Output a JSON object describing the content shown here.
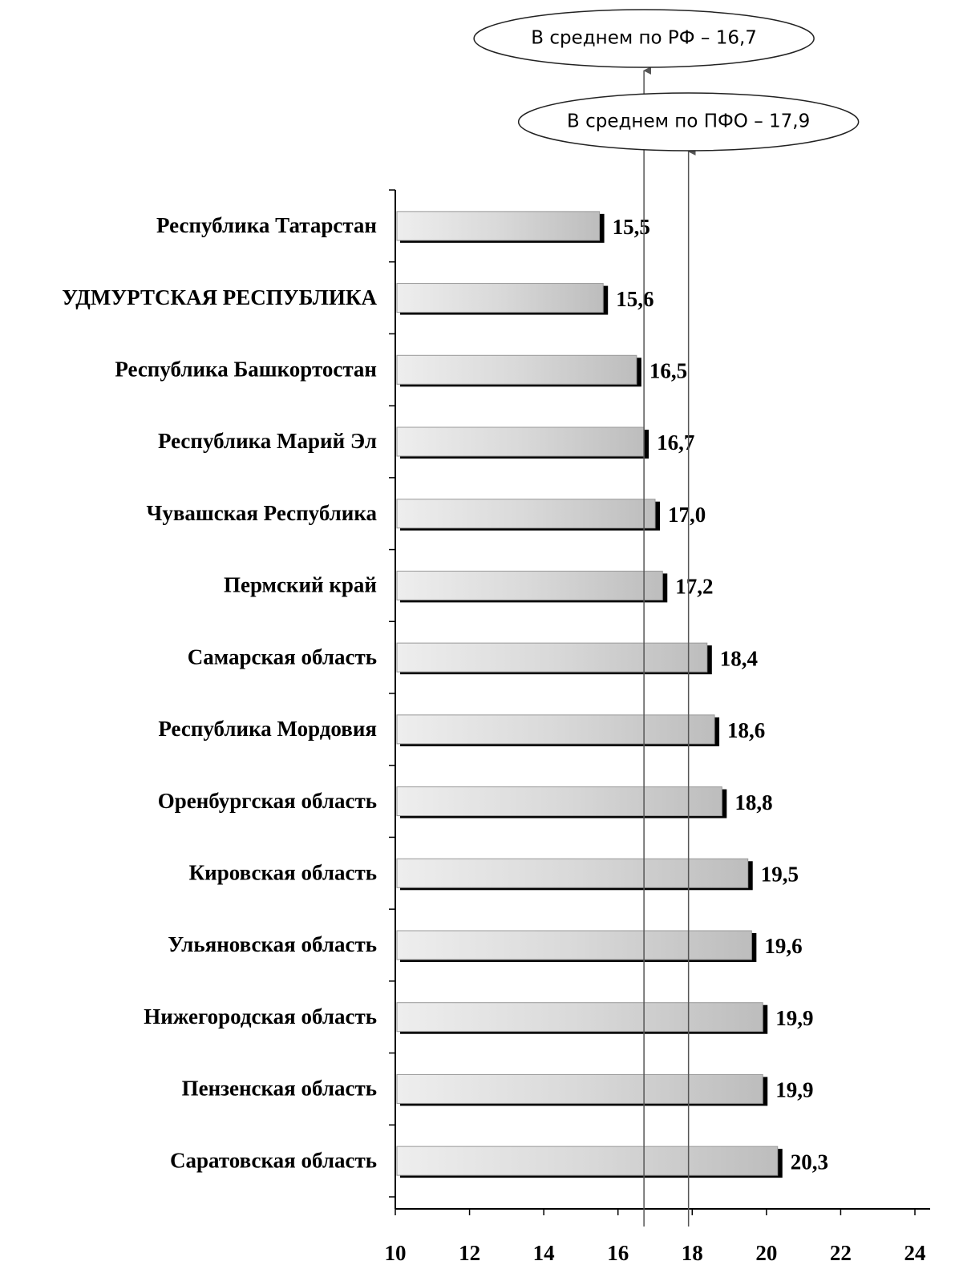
{
  "chart_data": {
    "type": "bar",
    "orientation": "horizontal",
    "categories": [
      "Республика Татарстан",
      "УДМУРТСКАЯ РЕСПУБЛИКА",
      "Республика Башкортостан",
      "Республика Марий Эл",
      "Чувашская Республика",
      "Пермский край",
      "Самарская  область",
      "Республика Мордовия",
      "Оренбургская область",
      "Кировская область",
      "Ульяновская область",
      "Нижегородская область",
      "Пензенская область",
      "Саратовская область"
    ],
    "values": [
      15.5,
      15.6,
      16.5,
      16.7,
      17.0,
      17.2,
      18.4,
      18.6,
      18.8,
      19.5,
      19.6,
      19.9,
      19.9,
      20.3
    ],
    "value_labels": [
      "15,5",
      "15,6",
      "16,5",
      "16,7",
      "17,0",
      "17,2",
      "18,4",
      "18,6",
      "18,8",
      "19,5",
      "19,6",
      "19,9",
      "19,9",
      "20,3"
    ],
    "color": "#c8c8c8",
    "xlim": [
      10,
      24
    ],
    "xticks": [
      10,
      12,
      14,
      16,
      18,
      20,
      22,
      24
    ],
    "reference_lines": [
      {
        "label": "В среднем по РФ – 16,7",
        "value": 16.7
      },
      {
        "label": "В среднем по ПФО – 17,9",
        "value": 17.9
      }
    ]
  }
}
